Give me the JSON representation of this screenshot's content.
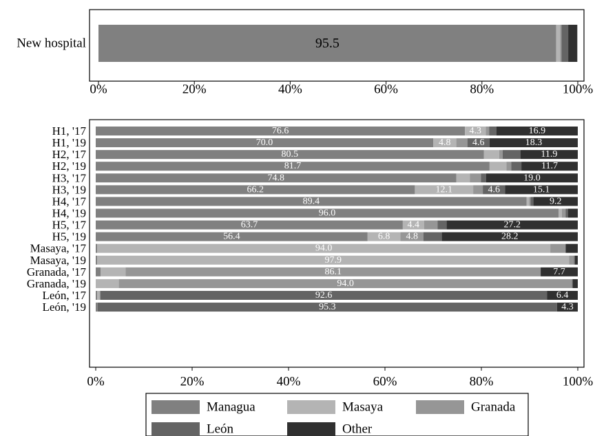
{
  "chart_data": [
    {
      "type": "bar",
      "orientation": "horizontal",
      "stacked": true,
      "percent_axis": true,
      "xlim": [
        0,
        100
      ],
      "x_ticks": [
        "0%",
        "20%",
        "40%",
        "60%",
        "80%",
        "100%"
      ],
      "categories": [
        "New hospital"
      ],
      "series": [
        {
          "name": "Managua",
          "values": [
            95.5
          ]
        },
        {
          "name": "Masaya",
          "values": [
            0.8
          ]
        },
        {
          "name": "Granada",
          "values": [
            0.3
          ]
        },
        {
          "name": "León",
          "values": [
            1.4
          ]
        },
        {
          "name": "Other",
          "values": [
            1.9
          ]
        }
      ],
      "data_labels": [
        {
          "category": 0,
          "series": 0,
          "text": "95.5"
        }
      ]
    },
    {
      "type": "bar",
      "orientation": "horizontal",
      "stacked": true,
      "percent_axis": true,
      "xlim": [
        0,
        100
      ],
      "x_ticks": [
        "0%",
        "20%",
        "40%",
        "60%",
        "80%",
        "100%"
      ],
      "categories": [
        "H1, '17",
        "H1, '19",
        "H2, '17",
        "H2, '19",
        "H3, '17",
        "H3, '19",
        "H4, '17",
        "H4, '19",
        "H5, '17",
        "H5, '19",
        "Masaya, '17",
        "Masaya, '19",
        "Granada, '17",
        "Granada, '19",
        "León, '17",
        "León, '19"
      ],
      "series": [
        {
          "name": "Managua",
          "values": [
            76.6,
            70.0,
            80.5,
            81.7,
            74.8,
            66.2,
            89.4,
            96.0,
            63.7,
            56.4,
            0.3,
            0.3,
            1.0,
            0.0,
            0.3,
            0.4
          ]
        },
        {
          "name": "Masaya",
          "values": [
            4.3,
            4.8,
            3.2,
            3.5,
            2.8,
            12.1,
            0.5,
            0.7,
            4.4,
            6.8,
            94.0,
            97.9,
            5.2,
            4.8,
            0.5,
            0.0
          ]
        },
        {
          "name": "Granada",
          "values": [
            0.7,
            2.3,
            0.7,
            1.0,
            2.3,
            2.0,
            0.3,
            0.8,
            2.8,
            4.8,
            3.2,
            1.0,
            86.1,
            94.0,
            0.2,
            0.0
          ]
        },
        {
          "name": "León",
          "values": [
            1.5,
            4.6,
            3.7,
            2.1,
            1.1,
            4.6,
            0.6,
            0.5,
            1.9,
            3.8,
            0.0,
            0.2,
            0.0,
            0.2,
            92.6,
            95.3
          ]
        },
        {
          "name": "Other",
          "values": [
            16.9,
            18.3,
            11.9,
            11.7,
            19.0,
            15.1,
            9.2,
            2.0,
            27.2,
            28.2,
            2.5,
            0.6,
            7.7,
            1.0,
            6.4,
            4.3
          ]
        }
      ],
      "data_labels": [
        {
          "category": 0,
          "series": 0,
          "text": "76.6"
        },
        {
          "category": 0,
          "series": 1,
          "text": "4.3"
        },
        {
          "category": 0,
          "series": 4,
          "text": "16.9"
        },
        {
          "category": 1,
          "series": 0,
          "text": "70.0"
        },
        {
          "category": 1,
          "series": 1,
          "text": "4.8"
        },
        {
          "category": 1,
          "series": 3,
          "text": "4.6"
        },
        {
          "category": 1,
          "series": 4,
          "text": "18.3"
        },
        {
          "category": 2,
          "series": 0,
          "text": "80.5"
        },
        {
          "category": 2,
          "series": 4,
          "text": "11.9"
        },
        {
          "category": 3,
          "series": 0,
          "text": "81.7"
        },
        {
          "category": 3,
          "series": 4,
          "text": "11.7"
        },
        {
          "category": 4,
          "series": 0,
          "text": "74.8"
        },
        {
          "category": 4,
          "series": 4,
          "text": "19.0"
        },
        {
          "category": 5,
          "series": 0,
          "text": "66.2"
        },
        {
          "category": 5,
          "series": 1,
          "text": "12.1"
        },
        {
          "category": 5,
          "series": 3,
          "text": "4.6"
        },
        {
          "category": 5,
          "series": 4,
          "text": "15.1"
        },
        {
          "category": 6,
          "series": 0,
          "text": "89.4"
        },
        {
          "category": 6,
          "series": 4,
          "text": "9.2"
        },
        {
          "category": 7,
          "series": 0,
          "text": "96.0"
        },
        {
          "category": 8,
          "series": 0,
          "text": "63.7"
        },
        {
          "category": 8,
          "series": 1,
          "text": "4.4"
        },
        {
          "category": 8,
          "series": 4,
          "text": "27.2"
        },
        {
          "category": 9,
          "series": 0,
          "text": "56.4"
        },
        {
          "category": 9,
          "series": 1,
          "text": "6.8"
        },
        {
          "category": 9,
          "series": 2,
          "text": "4.8"
        },
        {
          "category": 9,
          "series": 4,
          "text": "28.2"
        },
        {
          "category": 10,
          "series": 1,
          "text": "94.0"
        },
        {
          "category": 11,
          "series": 1,
          "text": "97.9"
        },
        {
          "category": 12,
          "series": 2,
          "text": "86.1"
        },
        {
          "category": 12,
          "series": 4,
          "text": "7.7"
        },
        {
          "category": 13,
          "series": 2,
          "text": "94.0"
        },
        {
          "category": 14,
          "series": 3,
          "text": "92.6"
        },
        {
          "category": 14,
          "series": 4,
          "text": "6.4"
        },
        {
          "category": 15,
          "series": 3,
          "text": "95.3"
        },
        {
          "category": 15,
          "series": 4,
          "text": "4.3"
        }
      ]
    }
  ],
  "legend": {
    "position": "bottom",
    "items": [
      {
        "label": "Managua",
        "color": "#808080"
      },
      {
        "label": "Masaya",
        "color": "#b4b4b4"
      },
      {
        "label": "Granada",
        "color": "#969696"
      },
      {
        "label": "León",
        "color": "#646464"
      },
      {
        "label": "Other",
        "color": "#303030"
      }
    ]
  },
  "colors": {
    "Managua": "#808080",
    "Masaya": "#b4b4b4",
    "Granada": "#969696",
    "León": "#646464",
    "Other": "#303030",
    "border": "#000000",
    "label_on_bar": "#ffffff"
  }
}
